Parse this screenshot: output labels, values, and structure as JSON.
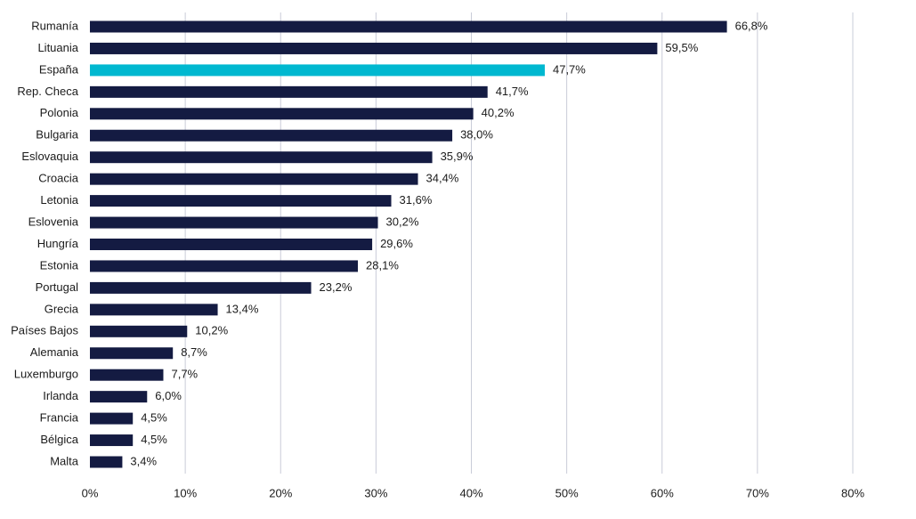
{
  "chart_data": {
    "type": "bar",
    "orientation": "horizontal",
    "title": "",
    "xlabel": "",
    "ylabel": "",
    "categories": [
      "Rumanía",
      "Lituania",
      "España",
      "Rep. Checa",
      "Polonia",
      "Bulgaria",
      "Eslovaquia",
      "Croacia",
      "Letonia",
      "Eslovenia",
      "Hungría",
      "Estonia",
      "Portugal",
      "Grecia",
      "Países Bajos",
      "Alemania",
      "Luxemburgo",
      "Irlanda",
      "Francia",
      "Bélgica",
      "Malta"
    ],
    "values": [
      66.8,
      59.5,
      47.7,
      41.7,
      40.2,
      38.0,
      35.9,
      34.4,
      31.6,
      30.2,
      29.6,
      28.1,
      23.2,
      13.4,
      10.2,
      8.7,
      7.7,
      6.0,
      4.5,
      4.5,
      3.4
    ],
    "value_labels": [
      "66,8%",
      "59,5%",
      "47,7%",
      "41,7%",
      "40,2%",
      "38,0%",
      "35,9%",
      "34,4%",
      "31,6%",
      "30,2%",
      "29,6%",
      "28,1%",
      "23,2%",
      "13,4%",
      "10,2%",
      "8,7%",
      "7,7%",
      "6,0%",
      "4,5%",
      "4,5%",
      "3,4%"
    ],
    "xlim": [
      0,
      80
    ],
    "x_ticks": [
      0,
      10,
      20,
      30,
      40,
      50,
      60,
      70,
      80
    ],
    "x_tick_labels": [
      "0%",
      "10%",
      "20%",
      "30%",
      "40%",
      "50%",
      "60%",
      "70%",
      "80%"
    ],
    "grid": "vertical",
    "legend": "none",
    "colors": {
      "default_bar": "#141b42",
      "highlight_bar": "#00b8d0",
      "gridline": "#c9ccd8"
    },
    "highlight_category": "España"
  }
}
